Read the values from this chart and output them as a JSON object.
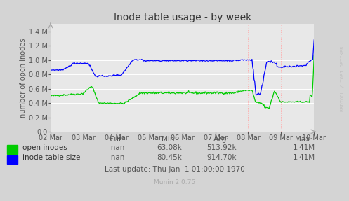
{
  "title": "Inode table usage - by week",
  "ylabel": "number of open inodes",
  "background_color": "#d4d4d4",
  "plot_bg_color": "#e8e8e8",
  "grid_color_h": "#ffffff",
  "grid_color_v": "#ffaaaa",
  "ylim": [
    0,
    1500000
  ],
  "yticks": [
    0.0,
    200000,
    400000,
    600000,
    800000,
    1000000,
    1200000,
    1400000
  ],
  "ytick_labels": [
    "0.0",
    "0.2 M",
    "0.4 M",
    "0.6 M",
    "0.8 M",
    "1.0 M",
    "1.2 M",
    "1.4 M"
  ],
  "xtick_labels": [
    "02 Mar",
    "03 Mar",
    "04 Mar",
    "05 Mar",
    "06 Mar",
    "07 Mar",
    "08 Mar",
    "09 Mar",
    "10 Mar"
  ],
  "line1_color": "#00cc00",
  "line2_color": "#0000ff",
  "legend_label1": "open inodes",
  "legend_label2": "inode table size",
  "watermark": "RRDTOOL / TOBI OETIKER",
  "footer_munin": "Munin 2.0.75",
  "cur_label": "Cur:",
  "min_label": "Min:",
  "avg_label": "Avg:",
  "max_label": "Max:",
  "line1_cur": "-nan",
  "line1_min": "63.08k",
  "line1_avg": "513.92k",
  "line1_max": "1.41M",
  "line2_cur": "-nan",
  "line2_min": "80.45k",
  "line2_avg": "914.70k",
  "line2_max": "1.41M",
  "last_update": "Last update: Thu Jan  1 01:00:00 1970"
}
